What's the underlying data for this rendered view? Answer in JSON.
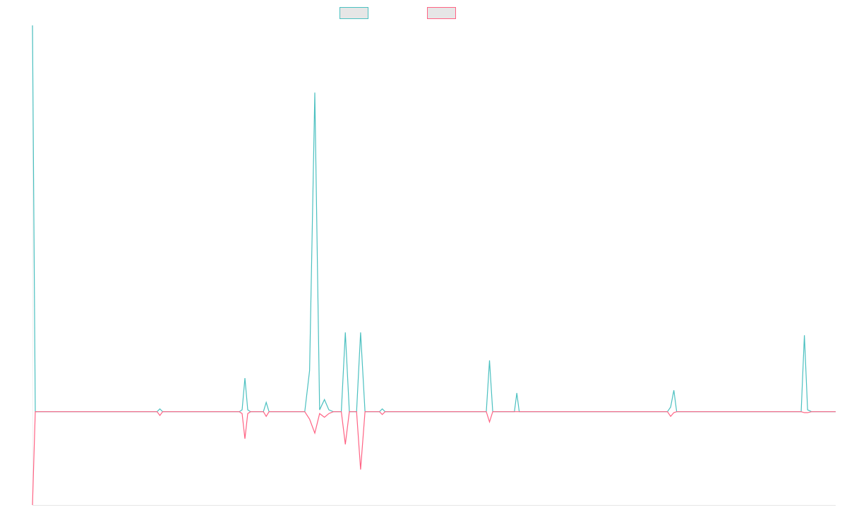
{
  "chart_data": {
    "type": "line",
    "title": "",
    "xlabel": "",
    "ylabel": "",
    "grid": false,
    "legend_placement": "top-center",
    "x_range": [
      0,
      1
    ],
    "y_range": [
      -1,
      4.14
    ],
    "series": [
      {
        "color": "#4BC0C0",
        "fill": "#E6E6E6",
        "points": [
          [
            0.0,
            4.14
          ],
          [
            0.0035,
            0.0
          ],
          [
            0.1551,
            0.0
          ],
          [
            0.1586,
            0.03
          ],
          [
            0.1621,
            0.0
          ],
          [
            0.2575,
            0.0
          ],
          [
            0.261,
            0.02
          ],
          [
            0.2645,
            0.36
          ],
          [
            0.268,
            0.02
          ],
          [
            0.2715,
            0.0
          ],
          [
            0.2875,
            0.0
          ],
          [
            0.291,
            0.1
          ],
          [
            0.2945,
            0.0
          ],
          [
            0.339,
            0.0
          ],
          [
            0.345,
            0.44
          ],
          [
            0.3515,
            3.42
          ],
          [
            0.3575,
            0.02
          ],
          [
            0.3635,
            0.13
          ],
          [
            0.369,
            0.02
          ],
          [
            0.3745,
            0.0
          ],
          [
            0.3845,
            0.0
          ],
          [
            0.3895,
            0.85
          ],
          [
            0.3945,
            0.0
          ],
          [
            0.4035,
            0.0
          ],
          [
            0.4085,
            0.85
          ],
          [
            0.414,
            0.0
          ],
          [
            0.432,
            0.0
          ],
          [
            0.4355,
            0.03
          ],
          [
            0.439,
            0.0
          ],
          [
            0.565,
            0.0
          ],
          [
            0.569,
            0.55
          ],
          [
            0.573,
            0.0
          ],
          [
            0.6,
            0.0
          ],
          [
            0.603,
            0.2
          ],
          [
            0.606,
            0.0
          ],
          [
            0.7905,
            0.0
          ],
          [
            0.7945,
            0.05
          ],
          [
            0.7985,
            0.23
          ],
          [
            0.802,
            0.0
          ],
          [
            0.957,
            0.0
          ],
          [
            0.961,
            0.82
          ],
          [
            0.965,
            0.02
          ],
          [
            0.97,
            0.0
          ],
          [
            1.0,
            0.0
          ]
        ]
      },
      {
        "color": "#FF6384",
        "fill": "#E6E6E6",
        "points": [
          [
            0.0,
            -1.0
          ],
          [
            0.0035,
            0.0
          ],
          [
            0.1551,
            0.0
          ],
          [
            0.1586,
            -0.04
          ],
          [
            0.1621,
            0.0
          ],
          [
            0.2575,
            0.0
          ],
          [
            0.261,
            -0.02
          ],
          [
            0.2645,
            -0.29
          ],
          [
            0.268,
            -0.02
          ],
          [
            0.2715,
            0.0
          ],
          [
            0.2875,
            0.0
          ],
          [
            0.291,
            -0.05
          ],
          [
            0.2945,
            0.0
          ],
          [
            0.339,
            0.0
          ],
          [
            0.345,
            -0.08
          ],
          [
            0.3515,
            -0.23
          ],
          [
            0.3575,
            -0.02
          ],
          [
            0.3635,
            -0.06
          ],
          [
            0.369,
            -0.02
          ],
          [
            0.3745,
            0.0
          ],
          [
            0.3845,
            0.0
          ],
          [
            0.3895,
            -0.35
          ],
          [
            0.3945,
            0.0
          ],
          [
            0.4035,
            0.0
          ],
          [
            0.4085,
            -0.62
          ],
          [
            0.414,
            0.0
          ],
          [
            0.432,
            0.0
          ],
          [
            0.4355,
            -0.03
          ],
          [
            0.439,
            0.0
          ],
          [
            0.565,
            0.0
          ],
          [
            0.569,
            -0.11
          ],
          [
            0.573,
            0.0
          ],
          [
            0.6,
            0.0
          ],
          [
            0.603,
            0.0
          ],
          [
            0.606,
            0.0
          ],
          [
            0.7905,
            0.0
          ],
          [
            0.7945,
            -0.05
          ],
          [
            0.7985,
            -0.01
          ],
          [
            0.802,
            0.0
          ],
          [
            0.957,
            0.0
          ],
          [
            0.961,
            -0.01
          ],
          [
            0.965,
            -0.01
          ],
          [
            0.97,
            0.0
          ],
          [
            1.0,
            0.0
          ]
        ]
      }
    ]
  }
}
